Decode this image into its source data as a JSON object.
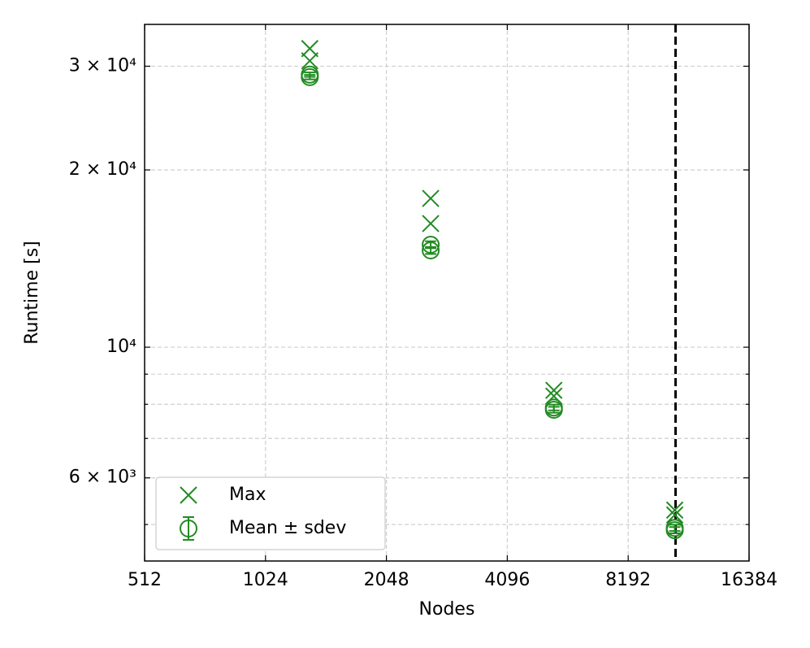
{
  "chart_data": {
    "type": "scatter",
    "x_label": "Nodes",
    "y_label": "Runtime [s]",
    "xlog": true,
    "ylog": true,
    "grid": true,
    "legend": "lower left",
    "xlim": [
      512,
      16384
    ],
    "xticks": [
      512,
      1024,
      2048,
      4096,
      8192,
      16384
    ],
    "ylim": [
      4335,
      35330
    ],
    "yticks": [
      {
        "value": 6000,
        "label": "6 × 10³"
      },
      {
        "value": 10000,
        "label": "10⁴"
      },
      {
        "value": 20000,
        "label": "2 × 10⁴"
      },
      {
        "value": 30000,
        "label": "3 × 10⁴"
      }
    ],
    "yminorticks": [
      5000,
      7000,
      8000,
      9000
    ],
    "vlines": [
      10750
    ],
    "series": [
      {
        "name": "Max",
        "color": "#228b22",
        "marker": "x",
        "x": [
          1320,
          1320,
          2640,
          2640,
          5350,
          5350,
          10700,
          10700
        ],
        "values": [
          32140,
          30640,
          17890,
          16220,
          8450,
          8260,
          5290,
          5190
        ]
      },
      {
        "name": "Mean ± sdev",
        "color": "#228b22",
        "marker": "o",
        "x": [
          1320,
          1320,
          2640,
          2640,
          5350,
          5350,
          10700,
          10700
        ],
        "values": [
          29030,
          28750,
          14930,
          14600,
          7900,
          7830,
          4935,
          4890
        ],
        "errors": [
          250,
          250,
          200,
          200,
          90,
          90,
          60,
          60
        ]
      }
    ]
  }
}
